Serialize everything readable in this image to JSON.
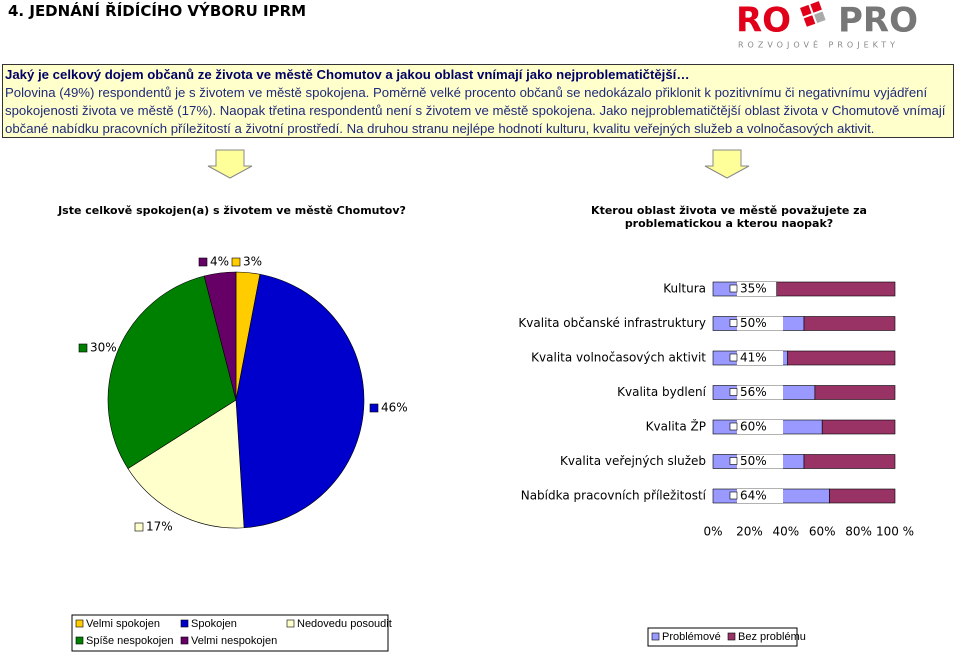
{
  "header": {
    "title": "4. JEDNÁNÍ ŘÍDÍCÍHO VÝBORU IPRM",
    "logo": {
      "brand_a": "RO",
      "brand_b": "PRO",
      "tagline": "ROZVOJOVÉ PROJEKTY"
    }
  },
  "summary": {
    "heading": "Jaký je celkový dojem občanů ze života ve městě Chomutov a jakou oblast vnímají jako nejproblematičtější…",
    "text": "Polovina (49%) respondentů je s životem ve městě spokojena. Poměrně velké procento občanů se nedokázalo přiklonit k pozitivnímu či negativnímu vyjádření spokojenosti života ve městě (17%). Naopak třetina respondentů není s životem ve městě spokojena. Jako nejproblematičtější oblast života v Chomutově vnímají občané nabídku pracovních příležitostí a životní prostředí. Na druhou stranu nejlépe hodnotí kulturu, kvalitu veřejných služeb a volnočasových aktivit."
  },
  "chart_data": [
    {
      "type": "pie",
      "title": "Jste celkově spokojen(a) s životem ve městě Chomutov?",
      "categories": [
        "Velmi spokojen",
        "Spokojen",
        "Nedovedu posoudit",
        "Spíše nespokojen",
        "Velmi nespokojen"
      ],
      "values": [
        3,
        46,
        17,
        30,
        4
      ],
      "value_labels": [
        "3%",
        "46%",
        "17%",
        "30%",
        "4%"
      ],
      "colors": [
        "#ffcc00",
        "#0000cc",
        "#ffffcc",
        "#008000",
        "#660066"
      ],
      "legend": "bottom"
    },
    {
      "type": "bar",
      "orientation": "horizontal",
      "stacked": true,
      "title": "Kterou oblast života ve městě považujete za problematickou a kterou naopak?",
      "categories": [
        "Kultura",
        "Kvalita občanské infrastruktury",
        "Kvalita volnočasových aktivit",
        "Kvalita bydlení",
        "Kvalita ŽP",
        "Kvalita veřejných služeb",
        "Nabídka pracovních příležitostí"
      ],
      "series": [
        {
          "name": "Problémové",
          "color": "#9999ff",
          "values": [
            35,
            50,
            41,
            56,
            60,
            50,
            64
          ],
          "value_labels": [
            "35%",
            "50%",
            "41%",
            "56%",
            "60%",
            "50%",
            "64%"
          ]
        },
        {
          "name": "Bez problému",
          "color": "#993366",
          "values": [
            65,
            50,
            59,
            44,
            40,
            50,
            36
          ]
        }
      ],
      "xlim": [
        0,
        100
      ],
      "xticks": [
        {
          "value": 0,
          "label": "0%"
        },
        {
          "value": 20,
          "label": "20%"
        },
        {
          "value": 40,
          "label": "40%"
        },
        {
          "value": 60,
          "label": "60%"
        },
        {
          "value": 80,
          "label": "80%"
        },
        {
          "value": 100,
          "label": "100 %"
        }
      ],
      "grid": false,
      "legend": "bottom"
    }
  ]
}
